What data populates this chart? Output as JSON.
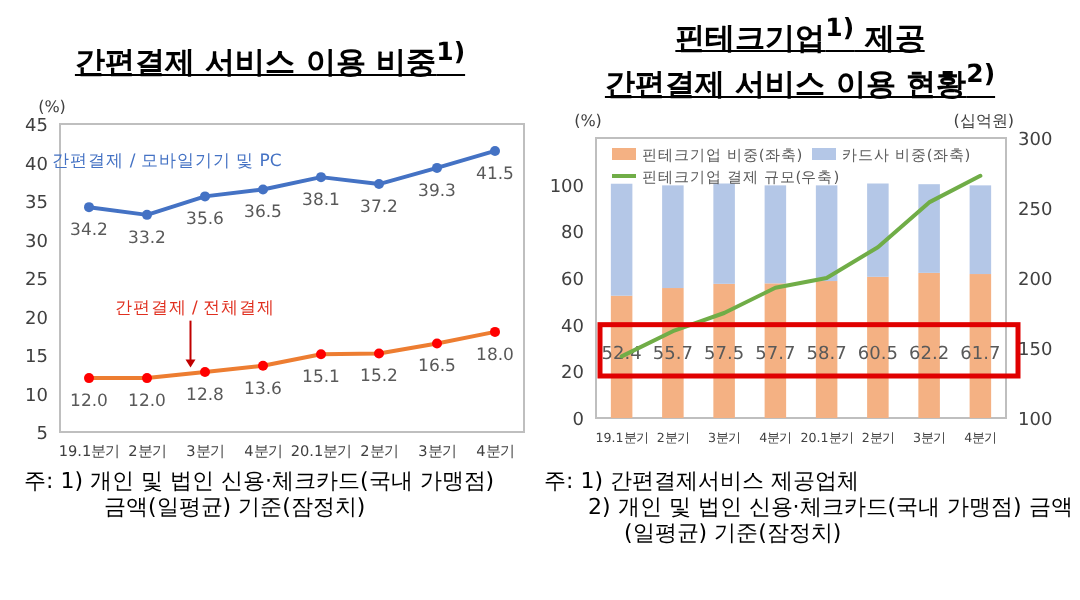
{
  "chart_data": [
    {
      "type": "line",
      "title": "간편결제 서비스 이용 비중$^{1)}$",
      "ylabel": "(%)",
      "categories": [
        "19.1분기",
        "2분기",
        "3분기",
        "4분기",
        "20.1분기",
        "2분기",
        "3분기",
        "4분기"
      ],
      "series": [
        {
          "name": "간편결제 / 모바일기기 및 PC",
          "color": "#4472c4",
          "values": [
            34.2,
            33.2,
            35.6,
            36.5,
            38.1,
            37.2,
            39.3,
            41.5
          ],
          "value_labels": [
            "34.2",
            "33.2",
            "35.6",
            "36.5",
            "38.1",
            "37.2",
            "39.3",
            "41.5"
          ]
        },
        {
          "name": "간편결제 / 전체결제",
          "color": "#ed7d31",
          "values": [
            12.0,
            12.0,
            12.8,
            13.6,
            15.1,
            15.2,
            16.5,
            18.0
          ],
          "value_labels": [
            "12.0",
            "12.0",
            "12.8",
            "13.6",
            "15.1",
            "15.2",
            "16.5",
            "18.0"
          ]
        }
      ],
      "ylim": [
        5,
        45
      ],
      "yticks": [
        5,
        10,
        15,
        20,
        25,
        30,
        35,
        40,
        45
      ],
      "marker": "circle",
      "grid": false,
      "annotations": [
        "주: 1) 개인 및 법인 신용·체크카드(국내 가맹점) 금액(일평균) 기준(잠정치)"
      ]
    },
    {
      "type": "bar",
      "stacked": true,
      "title": "핀테크기업$^{1)}$ 제공 간편결제 서비스 이용 현황$^{2)}$",
      "ylabel": "(%)",
      "y2label": "(십억원)",
      "categories": [
        "19.1분기",
        "2분기",
        "3분기",
        "4분기",
        "20.1분기",
        "2분기",
        "3분기",
        "4분기"
      ],
      "series": [
        {
          "name": "핀테크기업 비중(좌축)",
          "color": "#f4b183",
          "values": [
            52.4,
            55.7,
            57.5,
            57.7,
            58.7,
            60.5,
            62.2,
            61.7
          ],
          "value_labels": [
            "52.4",
            "55.7",
            "57.5",
            "57.7",
            "58.7",
            "60.5",
            "62.2",
            "61.7"
          ]
        },
        {
          "name": "카드사 비중(좌축)",
          "color": "#b4c7e7",
          "values": [
            48,
            44,
            43,
            42,
            41,
            40,
            38,
            38
          ]
        },
        {
          "name": "핀테크기업 결제 규모(우축)",
          "type": "line",
          "axis": "y2",
          "color": "#70ad47",
          "values": [
            144,
            162,
            175,
            193,
            200,
            222,
            254,
            273
          ]
        }
      ],
      "ylim": [
        0,
        120
      ],
      "yticks": [
        0,
        20,
        40,
        60,
        80,
        100
      ],
      "y2lim": [
        100,
        300
      ],
      "y2ticks": [
        100,
        150,
        200,
        250,
        300
      ],
      "legend": "top",
      "grid": false,
      "annotations": [
        "주: 1) 간편결제서비스 제공업체",
        "2) 개인 및 법인 신용·체크카드(국내 가맹점) 금액(일평균) 기준(잠정치)"
      ]
    }
  ]
}
